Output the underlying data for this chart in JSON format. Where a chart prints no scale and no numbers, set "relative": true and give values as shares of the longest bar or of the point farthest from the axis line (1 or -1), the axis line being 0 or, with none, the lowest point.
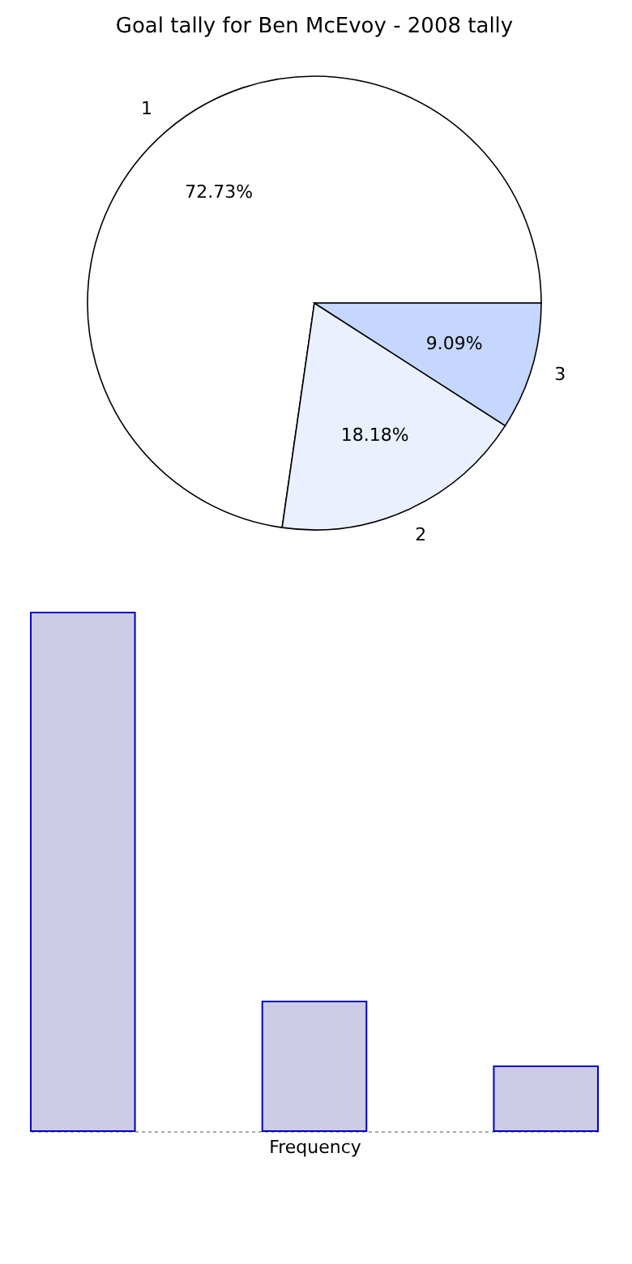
{
  "chart_data": [
    {
      "type": "pie",
      "title": "Goal tally for Ben McEvoy - 2008 tally",
      "categories": [
        "1",
        "2",
        "3"
      ],
      "values": [
        72.73,
        18.18,
        9.09
      ],
      "colors": [
        "#ffffff",
        "#eaf0fe",
        "#c5d7fe"
      ],
      "value_labels": [
        "72.73%",
        "18.18%",
        "9.09%"
      ]
    },
    {
      "type": "bar",
      "categories": [
        null,
        null,
        null
      ],
      "values": [
        1,
        0.25,
        0.125
      ],
      "relative": true,
      "xlabel": "Frequency",
      "color": "#cccce6"
    }
  ]
}
